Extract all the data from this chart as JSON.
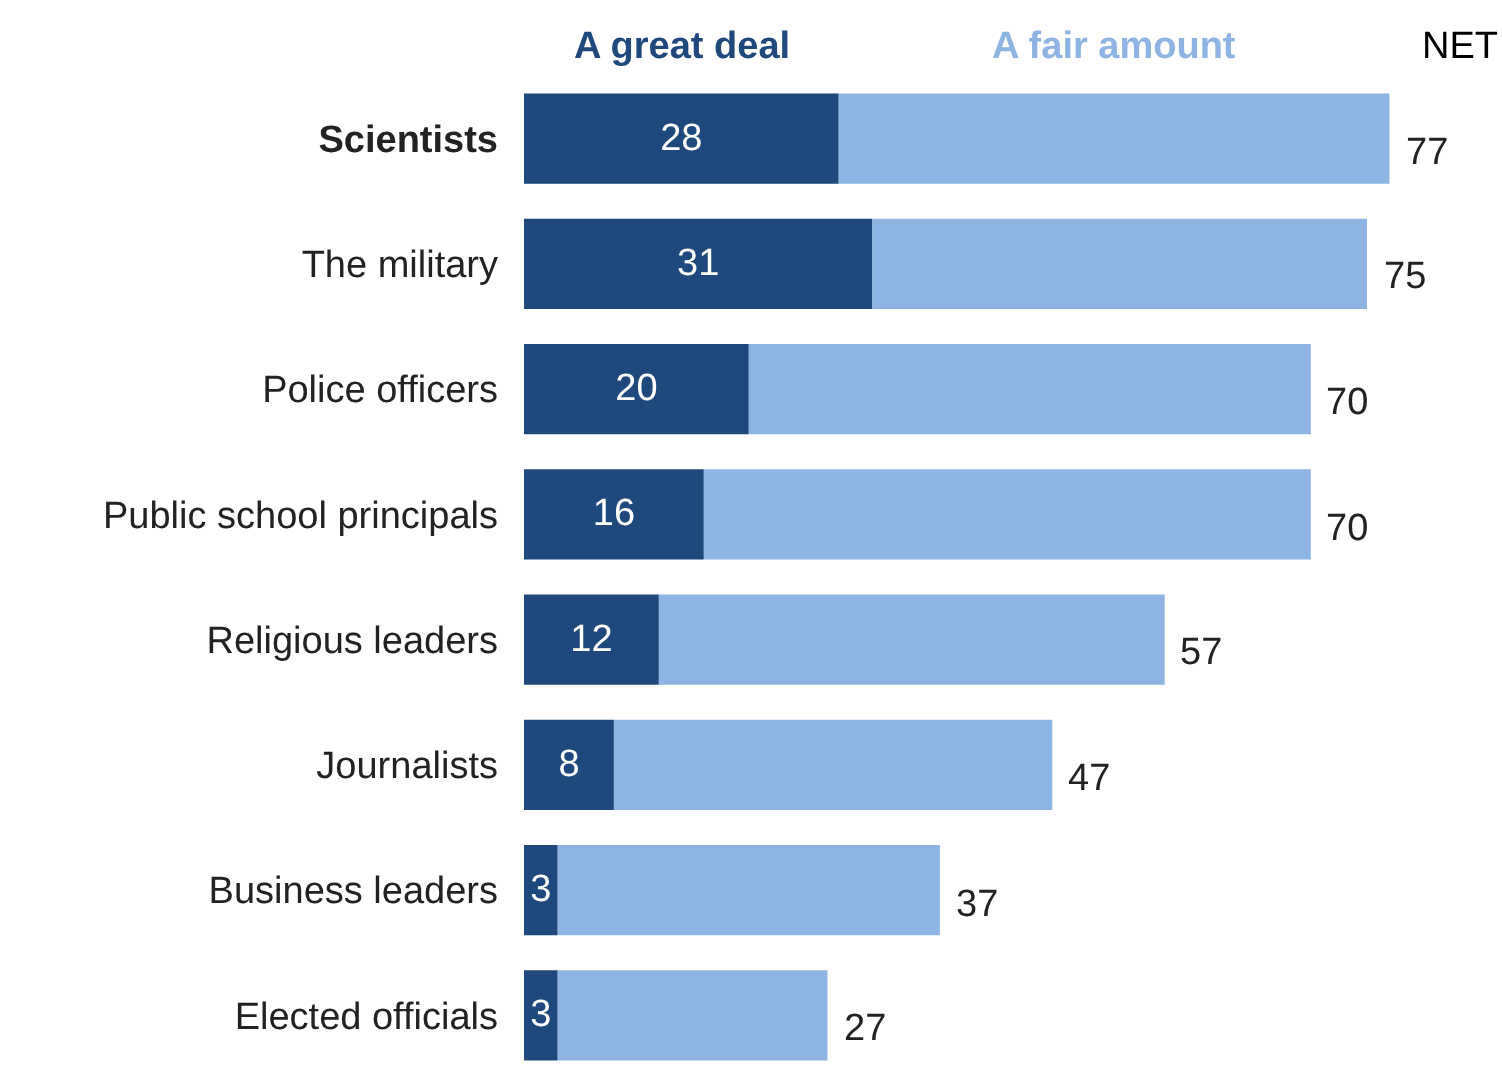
{
  "chart_data": {
    "type": "bar",
    "orientation": "horizontal",
    "stacked": true,
    "categories": [
      "Scientists",
      "The military",
      "Police officers",
      "Public school principals",
      "Religious leaders",
      "Journalists",
      "Business leaders",
      "Elected officials"
    ],
    "series": [
      {
        "name": "A great deal",
        "color": "#1f497d",
        "values": [
          28,
          31,
          20,
          16,
          12,
          8,
          3,
          3
        ],
        "value_labels": [
          "28",
          "31",
          "20",
          "16",
          "12",
          "8",
          "3",
          "3"
        ]
      },
      {
        "name": "A fair amount",
        "color": "#8db4e2",
        "values": [
          49,
          44,
          50,
          54,
          45,
          39,
          34,
          24
        ]
      }
    ],
    "totals": [
      "77",
      "75",
      "70",
      "70",
      "57",
      "47",
      "37",
      "27"
    ],
    "annotations": [
      "NET"
    ],
    "legend": "top",
    "tick_labels": "y"
  }
}
